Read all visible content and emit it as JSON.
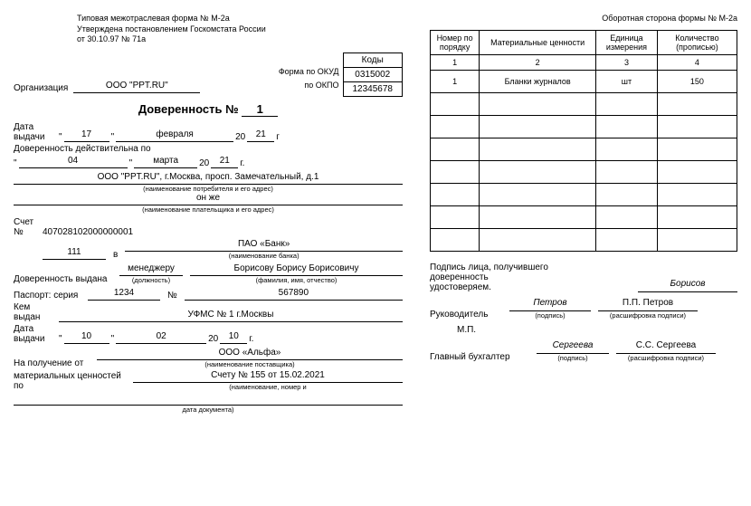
{
  "header": {
    "line1": "Типовая межотраслевая форма № М-2а",
    "line2": "Утверждена постановлением Госкомстата России",
    "line3": "от 30.10.97 № 71а"
  },
  "codes": {
    "header": "Коды",
    "okud_label": "Форма по ОКУД",
    "okud": "0315002",
    "okpo_label": "по ОКПО",
    "okpo": "12345678"
  },
  "org_label": "Организация",
  "org_value": "ООО \"PPT.RU\"",
  "title_prefix": "Доверенность №",
  "doc_no": "1",
  "issue": {
    "label": "Дата выдачи",
    "day": "17",
    "month": "февраля",
    "yy_prefix": "20",
    "yy": "21",
    "g": "г"
  },
  "valid": {
    "label": "Доверенность действительна по",
    "day": "04",
    "month": "марта",
    "yy_prefix": "20",
    "yy": "21",
    "g": "г."
  },
  "consumer": {
    "value": "ООО \"PPT.RU\", г.Москва, просп. Замечательный, д.1",
    "caption": "(наименование потребителя и его адрес)"
  },
  "payer": {
    "value": "он же",
    "caption": "(наименование плательщика и его адрес)"
  },
  "account": {
    "label": "Счет №",
    "corr": "407028102000000001",
    "no": "111",
    "v": "в",
    "bank": "ПАО «Банк»",
    "caption": "(наименование банка)"
  },
  "issued_to": {
    "label": "Доверенность выдана",
    "position": "менеджеру",
    "position_caption": "(должность)",
    "fio": "Борисову Борису Борисовичу",
    "fio_caption": "(фамилия, имя, отчество)"
  },
  "passport": {
    "label": "Паспорт: серия",
    "series": "1234",
    "no_label": "№",
    "no": "567890",
    "kem_label": "Кем выдан",
    "kem": "УФМС № 1 г.Москвы",
    "date_label": "Дата выдачи",
    "day": "10",
    "month": "02",
    "yy_prefix": "20",
    "yy": "10",
    "g": "г."
  },
  "receive": {
    "label": "На получение от",
    "supplier": "ООО «Альфа»",
    "supplier_caption": "(наименование поставщика)",
    "materials_label": "материальных ценностей по",
    "doc": "Счету № 155 от 15.02.2021",
    "doc_caption": "(наименование, номер и",
    "date_caption": "дата документа)"
  },
  "reverse_header": "Оборотная сторона формы № М-2а",
  "table": {
    "headers": [
      "Номер по порядку",
      "Материальные ценности",
      "Единица измерения",
      "Количество (прописью)"
    ],
    "header_nums": [
      "1",
      "2",
      "3",
      "4"
    ],
    "rows": [
      [
        "1",
        "Бланки журналов",
        "шт",
        "150"
      ],
      [
        "",
        "",
        "",
        ""
      ],
      [
        "",
        "",
        "",
        ""
      ],
      [
        "",
        "",
        "",
        ""
      ],
      [
        "",
        "",
        "",
        ""
      ],
      [
        "",
        "",
        "",
        ""
      ],
      [
        "",
        "",
        "",
        ""
      ],
      [
        "",
        "",
        "",
        ""
      ]
    ]
  },
  "sig": {
    "confirm1": "Подпись лица, получившего",
    "confirm2": "доверенность",
    "confirm3": "удостоверяем.",
    "recipient_sig": "Борисов",
    "ruk_label": "Руководитель",
    "ruk_sig": "Петров",
    "ruk_name": "П.П. Петров",
    "mp": "М.П.",
    "gb_label": "Главный бухгалтер",
    "gb_sig": "Сергеева",
    "gb_name": "С.С. Сергеева",
    "sig_caption": "(подпись)",
    "name_caption": "(расшифровка подписи)"
  }
}
